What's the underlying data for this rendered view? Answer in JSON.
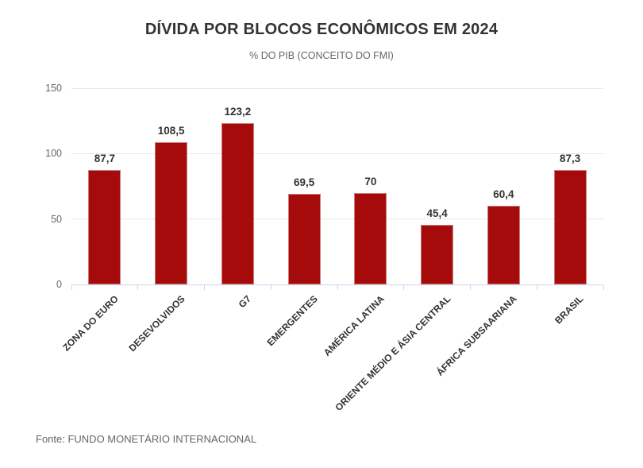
{
  "chart_data": {
    "type": "bar",
    "title": "DÍVIDA POR BLOCOS ECONÔMICOS EM 2024",
    "subtitle": "% DO PIB (CONCEITO DO FMI)",
    "source": "Fonte: FUNDO MONETÁRIO INTERNACIONAL",
    "categories": [
      "ZONA DO EURO",
      "DESEVOLVIDOS",
      "G7",
      "EMERGENTES",
      "AMÉRICA LATINA",
      "ORIENTE MÉDIO E ÁSIA CENTRAL",
      "ÁFRICA SUBSAARIANA",
      "BRASIL"
    ],
    "values": [
      87.7,
      108.5,
      123.2,
      69.5,
      70,
      45.4,
      60.4,
      87.3
    ],
    "value_labels": [
      "87,7",
      "108,5",
      "123,2",
      "69,5",
      "70",
      "45,4",
      "60,4",
      "87,3"
    ],
    "xlabel": "",
    "ylabel": "",
    "ylim": [
      0,
      150
    ],
    "yticks": [
      0,
      50,
      100,
      150
    ],
    "grid": true,
    "legend": false,
    "colors": {
      "bar_fill": "#a50b0b",
      "bar_border": "rgba(255,255,255,0.45)",
      "axis_line": "#ccd6eb",
      "gridline": "#e6e6e6",
      "tick_label": "#666666",
      "category_label": "#333333",
      "value_label": "#333333",
      "title": "#333333",
      "subtitle": "#666666",
      "source": "#666666",
      "background": "#ffffff"
    }
  }
}
